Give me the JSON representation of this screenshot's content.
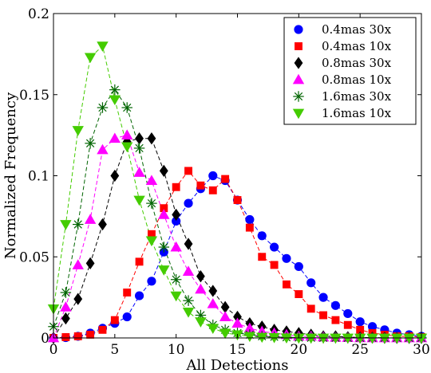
{
  "chart_data": {
    "type": "line",
    "title": "",
    "xlabel": "All Detections",
    "ylabel": "Normalized Frequency",
    "xlim": [
      0,
      30
    ],
    "ylim": [
      0,
      0.2
    ],
    "xticks": [
      0,
      5,
      10,
      15,
      20,
      25,
      30
    ],
    "yticks": [
      0,
      0.05,
      0.1,
      0.15,
      0.2
    ],
    "xtick_labels": [
      "0",
      "5",
      "10",
      "15",
      "20",
      "25",
      "30"
    ],
    "ytick_labels": [
      "0",
      "0.05",
      "0.1",
      "0.15",
      "0.2"
    ],
    "grid": false,
    "legend_position": "top-right",
    "series": [
      {
        "name": "0.4mas 30x",
        "color": "#0000ff",
        "marker": "circle",
        "x": [
          0,
          1,
          2,
          3,
          4,
          5,
          6,
          7,
          8,
          9,
          10,
          11,
          12,
          13,
          14,
          15,
          16,
          17,
          18,
          19,
          20,
          21,
          22,
          23,
          24,
          25,
          26,
          27,
          28,
          29,
          30
        ],
        "y": [
          0,
          0.0002,
          0.001,
          0.003,
          0.006,
          0.009,
          0.013,
          0.026,
          0.035,
          0.053,
          0.072,
          0.083,
          0.092,
          0.1,
          0.097,
          0.085,
          0.073,
          0.063,
          0.056,
          0.049,
          0.044,
          0.034,
          0.025,
          0.02,
          0.015,
          0.01,
          0.007,
          0.005,
          0.003,
          0.002,
          0.001
        ]
      },
      {
        "name": "0.4mas 10x",
        "color": "#ff0000",
        "marker": "square",
        "x": [
          0,
          1,
          2,
          3,
          4,
          5,
          6,
          7,
          8,
          9,
          10,
          11,
          12,
          13,
          14,
          15,
          16,
          17,
          18,
          19,
          20,
          21,
          22,
          23,
          24,
          25,
          26,
          27,
          28,
          29,
          30
        ],
        "y": [
          0,
          0.0005,
          0.001,
          0.002,
          0.005,
          0.011,
          0.028,
          0.047,
          0.064,
          0.08,
          0.093,
          0.103,
          0.094,
          0.091,
          0.098,
          0.085,
          0.068,
          0.05,
          0.045,
          0.033,
          0.027,
          0.018,
          0.014,
          0.011,
          0.008,
          0.005,
          0.003,
          0.002,
          0.001,
          0.001,
          0.0005
        ]
      },
      {
        "name": "0.8mas 30x",
        "color": "#000000",
        "marker": "diamond",
        "x": [
          0,
          1,
          2,
          3,
          4,
          5,
          6,
          7,
          8,
          9,
          10,
          11,
          12,
          13,
          14,
          15,
          16,
          17,
          18,
          19,
          20,
          21,
          22,
          23,
          24,
          25,
          26,
          27,
          28,
          29,
          30
        ],
        "y": [
          0,
          0.012,
          0.024,
          0.046,
          0.07,
          0.1,
          0.121,
          0.123,
          0.123,
          0.103,
          0.076,
          0.058,
          0.038,
          0.029,
          0.019,
          0.013,
          0.009,
          0.007,
          0.005,
          0.004,
          0.003,
          0.002,
          0.001,
          0.001,
          0.0005,
          0.0003,
          0.0002,
          0.0001,
          0,
          0,
          0
        ]
      },
      {
        "name": "0.8mas 10x",
        "color": "#ff00ff",
        "marker": "triangle-up",
        "x": [
          0,
          1,
          2,
          3,
          4,
          5,
          6,
          7,
          8,
          9,
          10,
          11,
          12,
          13,
          14,
          15,
          16,
          17,
          18,
          19,
          20,
          21,
          22,
          23,
          24,
          25,
          26,
          27,
          28,
          29,
          30
        ],
        "y": [
          0,
          0.019,
          0.045,
          0.073,
          0.116,
          0.123,
          0.125,
          0.102,
          0.097,
          0.076,
          0.056,
          0.041,
          0.03,
          0.021,
          0.013,
          0.009,
          0.006,
          0.004,
          0.003,
          0.002,
          0.001,
          0.001,
          0.0005,
          0.0003,
          0.0002,
          0.0001,
          0,
          0,
          0,
          0,
          0
        ]
      },
      {
        "name": "1.6mas 30x",
        "color": "#006400",
        "marker": "asterisk",
        "x": [
          0,
          1,
          2,
          3,
          4,
          5,
          6,
          7,
          8,
          9,
          10,
          11,
          12,
          13,
          14,
          15,
          16,
          17,
          18,
          19,
          20,
          21,
          22,
          23,
          24,
          25,
          26,
          27,
          28,
          29,
          30
        ],
        "y": [
          0.007,
          0.028,
          0.07,
          0.12,
          0.142,
          0.153,
          0.142,
          0.117,
          0.083,
          0.056,
          0.036,
          0.023,
          0.014,
          0.008,
          0.005,
          0.003,
          0.002,
          0.001,
          0.0007,
          0.0004,
          0.0002,
          0.0001,
          0,
          0,
          0,
          0,
          0,
          0,
          0,
          0,
          0
        ]
      },
      {
        "name": "1.6mas 10x",
        "color": "#44cc00",
        "marker": "triangle-down",
        "x": [
          0,
          1,
          2,
          3,
          4,
          5,
          6,
          7,
          8,
          9,
          10,
          11,
          12,
          13,
          14,
          15,
          16,
          17,
          18,
          19,
          20,
          21,
          22,
          23,
          24,
          25,
          26,
          27,
          28,
          29,
          30
        ],
        "y": [
          0.018,
          0.07,
          0.128,
          0.173,
          0.18,
          0.147,
          0.118,
          0.085,
          0.06,
          0.042,
          0.026,
          0.016,
          0.01,
          0.006,
          0.003,
          0.002,
          0.001,
          0.0005,
          0.0003,
          0.0001,
          0,
          0,
          0,
          0,
          0,
          0,
          0,
          0,
          0,
          0,
          0
        ]
      }
    ]
  }
}
